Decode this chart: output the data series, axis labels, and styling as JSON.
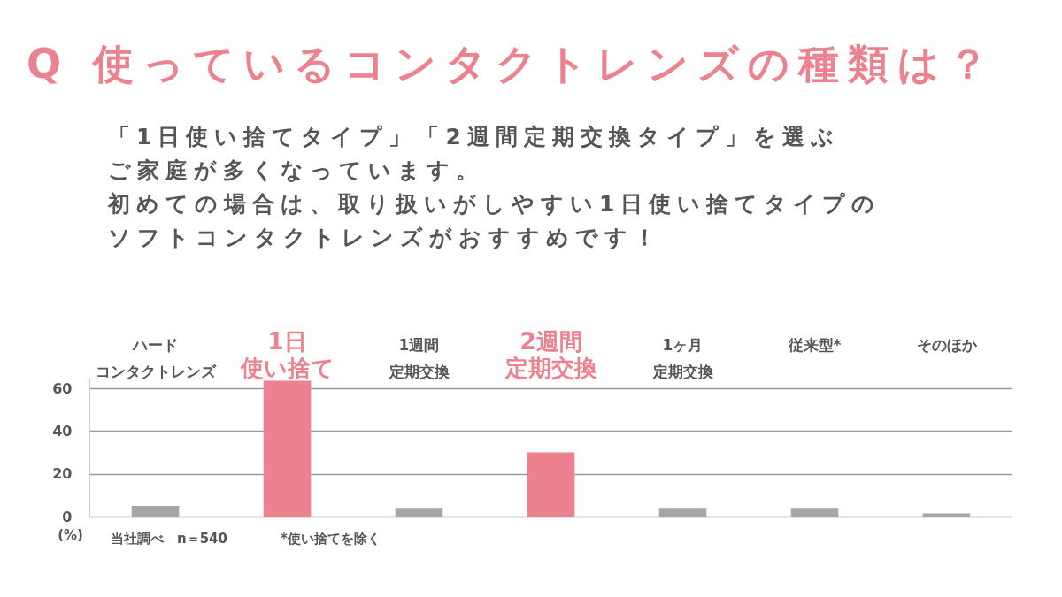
{
  "chart_data": {
    "type": "bar",
    "title": "Q 使っているコンタクトレンズの種類は？",
    "subtitle": "「1日使い捨てタイプ」「2週間定期交換タイプ」を選ぶご家庭が多くなっています。初めての場合は、取り扱いがしやすい1日使い捨てタイプのソフトコンタクトレンズがおすすめです！",
    "categories": [
      "ハードコンタクトレンズ",
      "1日使い捨て",
      "1週間定期交換",
      "2週間定期交換",
      "1ヶ月定期交換",
      "従来型*",
      "そのほか"
    ],
    "values": [
      5,
      63.5,
      4,
      30,
      4,
      4,
      1.5
    ],
    "colors": [
      "#a6a6a6",
      "#ec8290",
      "#a6a6a6",
      "#ec8290",
      "#a6a6a6",
      "#a6a6a6",
      "#a6a6a6"
    ],
    "ylabel": "(%)",
    "ylim": [
      0,
      65
    ],
    "yticks": [
      0,
      20,
      40,
      60
    ],
    "grid": "y",
    "annotations": [
      "当社調べ　n＝540",
      "*使い捨てを除く"
    ]
  }
}
